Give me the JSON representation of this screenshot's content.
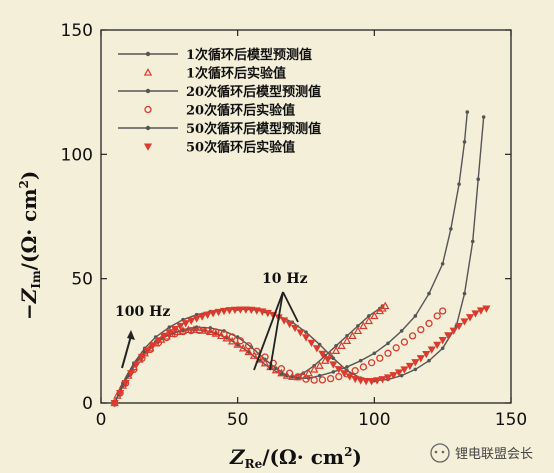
{
  "chart_data": {
    "type": "scatter",
    "title": "",
    "xlabel_main": "Z",
    "xlabel_sub": "Re",
    "xlabel_rest": "/(Ω· cm",
    "xlabel_sup": "2",
    "xlabel_end": ")",
    "ylabel_main": "−Z",
    "ylabel_sub": "Im",
    "ylabel_rest": "/(Ω· cm",
    "ylabel_sup": "2",
    "ylabel_end": ")",
    "xlim": [
      0,
      150
    ],
    "ylim": [
      0,
      150
    ],
    "xticks": [
      0,
      50,
      100,
      150
    ],
    "yticks": [
      0,
      50,
      100,
      150
    ],
    "legend_position": "top-center",
    "annotations": {
      "hz100": "100 Hz",
      "hz10": "10 Hz"
    },
    "series": [
      {
        "name": "1次循环后模型预测值",
        "kind": "model",
        "color": "#555555",
        "x": [
          5,
          7,
          10,
          14,
          18,
          22,
          26,
          30,
          34,
          38,
          42,
          46,
          50,
          54,
          58,
          62,
          66,
          70,
          74,
          78,
          82,
          86,
          90,
          94,
          98,
          102,
          103
        ],
        "y": [
          0,
          5,
          11,
          18,
          22.5,
          26,
          28,
          29.2,
          29.5,
          29.2,
          28,
          26.2,
          23.5,
          20.5,
          17,
          14,
          11.5,
          10.5,
          12,
          15,
          19,
          23,
          27,
          31,
          35,
          38,
          39
        ]
      },
      {
        "name": "1次循环后实验值",
        "kind": "exp",
        "marker": "triangle",
        "color": "#dd3a2e",
        "x": [
          5,
          6,
          8,
          10,
          12,
          14,
          16,
          18,
          20,
          22,
          24,
          26,
          28,
          30,
          32,
          34,
          36,
          38,
          40,
          42,
          44,
          46,
          48,
          50,
          52,
          54,
          56,
          58,
          60,
          62,
          64,
          66,
          68,
          70,
          72,
          74,
          76,
          78,
          80,
          82,
          84,
          86,
          88,
          90,
          92,
          94,
          96,
          98,
          100,
          102,
          103,
          104
        ],
        "y": [
          0,
          3,
          7,
          11,
          14.5,
          17.5,
          20,
          22,
          24,
          25.5,
          26.8,
          27.8,
          28.6,
          29.1,
          29.4,
          29.5,
          29.4,
          29.1,
          28.6,
          27.9,
          27,
          26,
          24.8,
          23.5,
          22,
          20.5,
          19,
          17.5,
          16,
          14.5,
          13.2,
          12,
          11,
          10.5,
          10.4,
          11,
          12,
          13.5,
          15,
          17,
          19,
          21,
          23,
          25,
          27,
          29,
          31,
          33,
          35,
          37,
          38,
          39
        ]
      },
      {
        "name": "20次循环后模型预测值",
        "kind": "model",
        "color": "#555555",
        "x": [
          5,
          8,
          12,
          16,
          20,
          25,
          30,
          35,
          40,
          45,
          50,
          55,
          60,
          64,
          68,
          72,
          76,
          80,
          85,
          90,
          95,
          100,
          105,
          110,
          115,
          120,
          125,
          128,
          131,
          133,
          134
        ],
        "y": [
          0,
          7,
          15,
          20.5,
          24.5,
          27.5,
          29.5,
          30.5,
          30.2,
          29,
          26.5,
          22.5,
          17.5,
          14,
          11,
          10,
          10,
          11,
          12.5,
          14.5,
          17,
          20,
          24,
          29,
          35,
          44,
          56,
          70,
          88,
          105,
          117
        ]
      },
      {
        "name": "20次循环后实验值",
        "kind": "exp",
        "marker": "circle",
        "color": "#dd3a2e",
        "x": [
          5,
          7,
          9,
          12,
          15,
          18,
          21,
          24,
          27,
          30,
          33,
          36,
          39,
          42,
          45,
          48,
          51,
          54,
          57,
          60,
          63,
          66,
          69,
          72,
          75,
          78,
          81,
          84,
          87,
          90,
          93,
          96,
          99,
          102,
          105,
          108,
          111,
          114,
          117,
          120,
          123,
          125
        ],
        "y": [
          0,
          4,
          8,
          13.5,
          18,
          21.5,
          24.2,
          26.3,
          27.8,
          28.7,
          29.1,
          29.2,
          29,
          28.6,
          27.8,
          26.6,
          25,
          23,
          20.8,
          18.5,
          16,
          13.8,
          12,
          10.5,
          9.6,
          9.2,
          9.3,
          9.8,
          10.6,
          11.7,
          13,
          14.5,
          16.2,
          18,
          20,
          22.2,
          24.5,
          27,
          29.5,
          32,
          35,
          37
        ]
      },
      {
        "name": "50次循环后模型预测值",
        "kind": "model",
        "color": "#555555",
        "x": [
          5,
          8,
          12,
          16,
          20,
          25,
          30,
          35,
          40,
          45,
          50,
          55,
          60,
          65,
          70,
          75,
          80,
          85,
          90,
          95,
          100,
          105,
          110,
          115,
          120,
          125,
          130,
          133,
          136,
          138,
          140
        ],
        "y": [
          0,
          8,
          16,
          22,
          26.5,
          30.5,
          33.5,
          35.5,
          36.8,
          37.5,
          37.8,
          37.6,
          36.8,
          35,
          32.5,
          28.5,
          23.5,
          18,
          13,
          10,
          9,
          9.5,
          11,
          13.5,
          17,
          22,
          31,
          44,
          65,
          90,
          115
        ]
      },
      {
        "name": "50次循环后实验值",
        "kind": "exp",
        "marker": "triangle-down",
        "color": "#dd3a2e",
        "x": [
          5,
          7,
          9,
          11,
          13,
          15,
          17,
          19,
          21,
          23,
          25,
          27,
          29,
          31,
          33,
          35,
          37,
          39,
          41,
          43,
          45,
          47,
          49,
          51,
          53,
          55,
          57,
          59,
          61,
          63,
          65,
          67,
          69,
          71,
          73,
          75,
          77,
          79,
          81,
          83,
          85,
          87,
          89,
          91,
          93,
          95,
          97,
          99,
          101,
          103,
          105,
          107,
          109,
          111,
          113,
          115,
          117,
          119,
          121,
          123,
          125,
          127,
          129,
          131,
          133,
          135,
          137,
          139,
          141
        ],
        "y": [
          0,
          4,
          8,
          12,
          15.5,
          18.5,
          21,
          23.2,
          25.2,
          27,
          28.5,
          29.8,
          31,
          32.1,
          33.1,
          34,
          34.8,
          35.5,
          36.1,
          36.6,
          37,
          37.3,
          37.5,
          37.6,
          37.6,
          37.5,
          37.2,
          36.8,
          36.2,
          35.4,
          34.4,
          33.2,
          31.8,
          30.2,
          28.4,
          26.4,
          24.2,
          22,
          19.8,
          17.6,
          15.5,
          13.6,
          12,
          10.7,
          9.7,
          9.1,
          8.8,
          8.8,
          9.1,
          9.6,
          10.3,
          11.2,
          12.3,
          13.5,
          14.9,
          16.4,
          18,
          19.7,
          21.5,
          23.4,
          25.3,
          27.2,
          29.1,
          31,
          32.8,
          34.5,
          36,
          37.2,
          38
        ]
      }
    ]
  },
  "watermark": {
    "text": "锂电联盟会长"
  }
}
